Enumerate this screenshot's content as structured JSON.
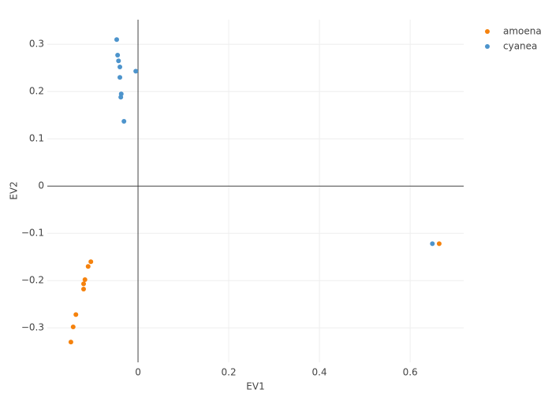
{
  "chart_data": {
    "type": "scatter",
    "x_label": "EV1",
    "y_label": "EV2",
    "xlim": [
      -0.2,
      0.718
    ],
    "ylim": [
      -0.373,
      0.352
    ],
    "xticks": [
      0,
      0.2,
      0.4,
      0.6
    ],
    "yticks": [
      {
        "value": -0.3,
        "label": "−0.3"
      },
      {
        "value": -0.2,
        "label": "−0.2"
      },
      {
        "value": -0.1,
        "label": "−0.1"
      },
      0,
      0.1,
      0.2,
      0.3
    ],
    "grid": true,
    "legend": "top-right",
    "series": [
      {
        "name": "amoena",
        "color": "#f5820d",
        "x": [
          0.664,
          -0.104,
          -0.11,
          -0.117,
          -0.12,
          -0.12,
          -0.137,
          -0.143,
          -0.148
        ],
        "values": [
          -0.122,
          -0.16,
          -0.17,
          -0.198,
          -0.207,
          -0.218,
          -0.272,
          -0.298,
          -0.33
        ]
      },
      {
        "name": "cyanea",
        "color": "#4d94cc",
        "x": [
          -0.047,
          -0.045,
          -0.043,
          -0.04,
          -0.04,
          -0.037,
          -0.038,
          -0.031,
          -0.005,
          0.649
        ],
        "values": [
          0.31,
          0.277,
          0.265,
          0.252,
          0.23,
          0.195,
          0.188,
          0.137,
          0.243,
          -0.122
        ]
      }
    ]
  }
}
